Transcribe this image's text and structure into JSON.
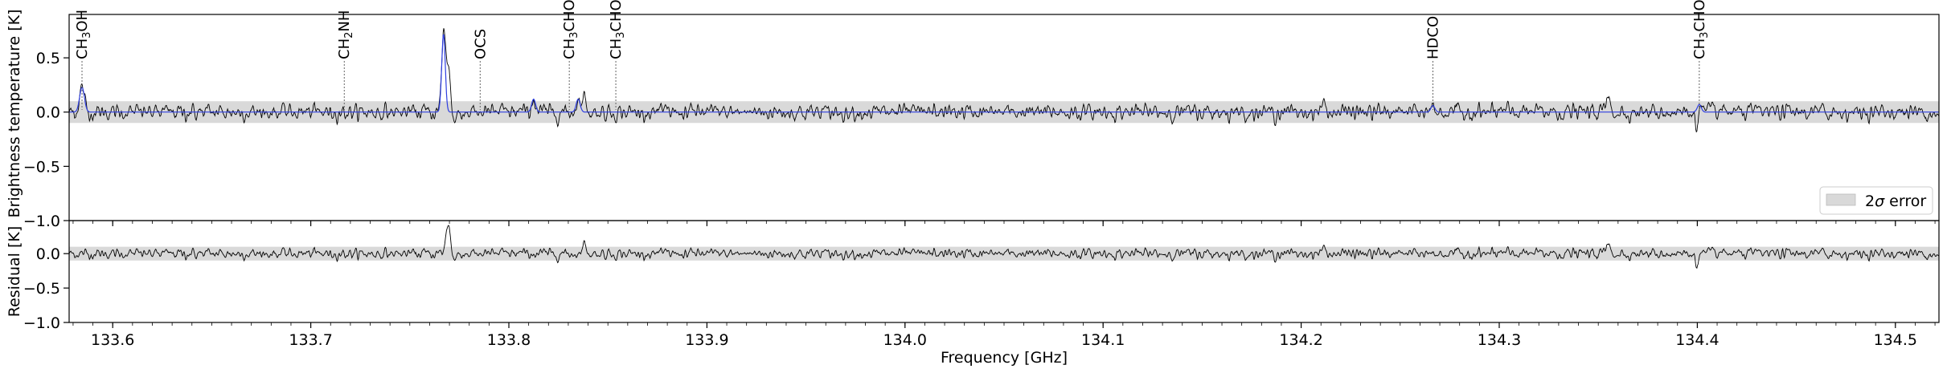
{
  "chart_data": {
    "type": "line",
    "x_range_ghz": [
      133.578,
      134.522
    ],
    "x_ticks": [
      133.6,
      133.7,
      133.8,
      133.9,
      134.0,
      134.1,
      134.2,
      134.3,
      134.4,
      134.5
    ],
    "x_tick_labels": [
      "133.6",
      "133.7",
      "133.8",
      "133.9",
      "134.0",
      "134.1",
      "134.2",
      "134.3",
      "134.4",
      "134.5"
    ],
    "xlabel": "Frequency [GHz]",
    "top_panel": {
      "ylabel": "Brightness temperature [K]",
      "ylim": [
        -1.0,
        0.9
      ],
      "y_ticks": [
        -1.0,
        -0.5,
        0.0,
        0.5
      ],
      "y_tick_labels": [
        "−1.0",
        "−0.5",
        "0.0",
        "0.5"
      ],
      "error_band": 0.1
    },
    "bottom_panel": {
      "ylabel": "Residual [K]",
      "ylim": [
        -1.0,
        0.48
      ],
      "y_ticks": [
        -1.0,
        -0.5,
        0.0
      ],
      "y_tick_labels": [
        "−1.0",
        "−0.5",
        "0.0"
      ],
      "error_band": 0.1
    },
    "line_identifications": [
      {
        "freq": 133.5845,
        "main": "CH",
        "sub": "3",
        "tail": "OH"
      },
      {
        "freq": 133.7169,
        "main": "CH",
        "sub": "2",
        "tail": "NH"
      },
      {
        "freq": 133.7855,
        "main": "OCS",
        "sub": "",
        "tail": ""
      },
      {
        "freq": 133.8305,
        "main": "CH",
        "sub": "3",
        "tail": "CHO"
      },
      {
        "freq": 133.854,
        "main": "CH",
        "sub": "3",
        "tail": "CHO"
      },
      {
        "freq": 134.2665,
        "main": "HDCO",
        "sub": "",
        "tail": ""
      },
      {
        "freq": 134.401,
        "main": "CH",
        "sub": "3",
        "tail": "CHO"
      }
    ],
    "model_peaks": [
      {
        "freq": 133.5845,
        "amp": 0.23,
        "width": 0.0012
      },
      {
        "freq": 133.767,
        "amp": 0.72,
        "width": 0.0009
      },
      {
        "freq": 133.8125,
        "amp": 0.12,
        "width": 0.001
      },
      {
        "freq": 133.835,
        "amp": 0.12,
        "width": 0.001
      },
      {
        "freq": 134.2665,
        "amp": 0.06,
        "width": 0.001
      },
      {
        "freq": 134.401,
        "amp": 0.07,
        "width": 0.001
      }
    ],
    "legend": {
      "placement": "bottom-right of top panel",
      "entry_pre": "2",
      "entry_sigma": "σ",
      "entry_post": " error"
    },
    "colors": {
      "data": "#000000",
      "model": "#2f3fe0",
      "band": "#d9d9d9",
      "annotation": "#555555"
    }
  }
}
